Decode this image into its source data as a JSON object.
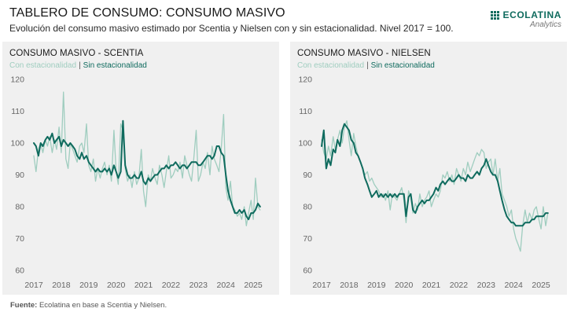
{
  "header": {
    "title": "TABLERO DE CONSUMO: CONSUMO MASIVO",
    "subtitle": "Evolución del consumo masivo estimado por Scentia y Nielsen con y sin estacionalidad. Nivel 2017 = 100."
  },
  "brand": {
    "name": "ECOLATINA",
    "sub": "Analytics",
    "color": "#0f6b5e"
  },
  "legend": {
    "sa_label": "Con estacionalidad",
    "separator": "|",
    "ss_label": "Sin estacionalidad"
  },
  "footer": {
    "source_label": "Fuente:",
    "source_text": " Ecolatina en base a Scentia y Nielsen."
  },
  "colors": {
    "panel_bg": "#f0f0f0",
    "light_series": "#9fcdbf",
    "dark_series": "#0f6b5e",
    "tick": "#666666"
  },
  "chart_data": [
    {
      "type": "line",
      "title": "CONSUMO MASIVO - SCENTIA",
      "ylim": [
        60,
        120
      ],
      "yticks": [
        60,
        70,
        80,
        90,
        100,
        110,
        120
      ],
      "xticks": [
        2017,
        2018,
        2019,
        2020,
        2021,
        2022,
        2023,
        2024,
        2025
      ],
      "xlim": [
        2017,
        2025.6
      ],
      "grid": false,
      "legend": "top-left",
      "series": [
        {
          "name": "Con estacionalidad",
          "color": "#9fcdbf",
          "x": [
            2017.0,
            2017.08,
            2017.17,
            2017.25,
            2017.33,
            2017.42,
            2017.5,
            2017.58,
            2017.67,
            2017.75,
            2017.83,
            2017.92,
            2018.0,
            2018.08,
            2018.17,
            2018.25,
            2018.33,
            2018.42,
            2018.5,
            2018.58,
            2018.67,
            2018.75,
            2018.83,
            2018.92,
            2019.0,
            2019.08,
            2019.17,
            2019.25,
            2019.33,
            2019.42,
            2019.5,
            2019.58,
            2019.67,
            2019.75,
            2019.83,
            2019.92,
            2020.0,
            2020.08,
            2020.17,
            2020.25,
            2020.33,
            2020.42,
            2020.5,
            2020.58,
            2020.67,
            2020.75,
            2020.83,
            2020.92,
            2021.0,
            2021.08,
            2021.17,
            2021.25,
            2021.33,
            2021.42,
            2021.5,
            2021.58,
            2021.67,
            2021.75,
            2021.83,
            2021.92,
            2022.0,
            2022.08,
            2022.17,
            2022.25,
            2022.33,
            2022.42,
            2022.5,
            2022.58,
            2022.67,
            2022.75,
            2022.83,
            2022.92,
            2023.0,
            2023.08,
            2023.17,
            2023.25,
            2023.33,
            2023.42,
            2023.5,
            2023.58,
            2023.67,
            2023.75,
            2023.83,
            2023.92,
            2024.0,
            2024.08,
            2024.17,
            2024.25,
            2024.33,
            2024.42,
            2024.5,
            2024.58,
            2024.67,
            2024.75,
            2024.83,
            2024.92,
            2025.0,
            2025.08,
            2025.17,
            2025.25
          ],
          "values": [
            96,
            91,
            98,
            100,
            97,
            101,
            99,
            102,
            97,
            101,
            98,
            105,
            97,
            116,
            95,
            92,
            100,
            98,
            96,
            94,
            99,
            100,
            97,
            106,
            93,
            91,
            95,
            88,
            92,
            89,
            92,
            94,
            90,
            93,
            88,
            104,
            91,
            87,
            106,
            104,
            92,
            88,
            90,
            86,
            91,
            87,
            89,
            98,
            85,
            80,
            90,
            88,
            92,
            89,
            87,
            93,
            90,
            86,
            91,
            96,
            89,
            90,
            92,
            91,
            94,
            89,
            96,
            93,
            90,
            88,
            95,
            104,
            88,
            90,
            94,
            92,
            97,
            90,
            99,
            95,
            93,
            91,
            98,
            109,
            86,
            82,
            88,
            80,
            79,
            77,
            78,
            76,
            80,
            74,
            78,
            82,
            76,
            89,
            80,
            79
          ]
        },
        {
          "name": "Sin estacionalidad",
          "color": "#0f6b5e",
          "x": [
            2017.0,
            2017.08,
            2017.17,
            2017.25,
            2017.33,
            2017.42,
            2017.5,
            2017.58,
            2017.67,
            2017.75,
            2017.83,
            2017.92,
            2018.0,
            2018.08,
            2018.17,
            2018.25,
            2018.33,
            2018.42,
            2018.5,
            2018.58,
            2018.67,
            2018.75,
            2018.83,
            2018.92,
            2019.0,
            2019.08,
            2019.17,
            2019.25,
            2019.33,
            2019.42,
            2019.5,
            2019.58,
            2019.67,
            2019.75,
            2019.83,
            2019.92,
            2020.0,
            2020.08,
            2020.17,
            2020.25,
            2020.33,
            2020.42,
            2020.5,
            2020.58,
            2020.67,
            2020.75,
            2020.83,
            2020.92,
            2021.0,
            2021.08,
            2021.17,
            2021.25,
            2021.33,
            2021.42,
            2021.5,
            2021.58,
            2021.67,
            2021.75,
            2021.83,
            2021.92,
            2022.0,
            2022.08,
            2022.17,
            2022.25,
            2022.33,
            2022.42,
            2022.5,
            2022.58,
            2022.67,
            2022.75,
            2022.83,
            2022.92,
            2023.0,
            2023.08,
            2023.17,
            2023.25,
            2023.33,
            2023.42,
            2023.5,
            2023.58,
            2023.67,
            2023.75,
            2023.83,
            2023.92,
            2024.0,
            2024.08,
            2024.17,
            2024.25,
            2024.33,
            2024.42,
            2024.5,
            2024.58,
            2024.67,
            2024.75,
            2024.83,
            2024.92,
            2025.0,
            2025.08,
            2025.17,
            2025.25
          ],
          "values": [
            100,
            99,
            96,
            100,
            99,
            101,
            102,
            101,
            103,
            100,
            101,
            102,
            99,
            101,
            100,
            99,
            100,
            99,
            98,
            96,
            95,
            97,
            95,
            96,
            94,
            93,
            92,
            91,
            92,
            91,
            91,
            92,
            91,
            92,
            90,
            93,
            91,
            89,
            91,
            107,
            93,
            90,
            89,
            89,
            90,
            89,
            89,
            91,
            88,
            87,
            89,
            88,
            89,
            90,
            90,
            91,
            92,
            92,
            93,
            92,
            93,
            93,
            94,
            93,
            92,
            93,
            93,
            92,
            93,
            94,
            94,
            94,
            93,
            93,
            94,
            95,
            96,
            96,
            95,
            96,
            99,
            99,
            97,
            96,
            90,
            85,
            82,
            80,
            78,
            78,
            79,
            78,
            79,
            77,
            76,
            78,
            78,
            79,
            81,
            80
          ]
        }
      ]
    },
    {
      "type": "line",
      "title": "CONSUMO MASIVO - NIELSEN",
      "ylim": [
        60,
        120
      ],
      "yticks": [
        60,
        70,
        80,
        90,
        100,
        110,
        120
      ],
      "xticks": [
        2017,
        2018,
        2019,
        2020,
        2021,
        2022,
        2023,
        2024,
        2025
      ],
      "xlim": [
        2017,
        2025.6
      ],
      "grid": false,
      "legend": "top-left",
      "series": [
        {
          "name": "Con estacionalidad",
          "color": "#9fcdbf",
          "x": [
            2017.0,
            2017.08,
            2017.17,
            2017.25,
            2017.33,
            2017.42,
            2017.5,
            2017.58,
            2017.67,
            2017.75,
            2017.83,
            2017.92,
            2018.0,
            2018.08,
            2018.17,
            2018.25,
            2018.33,
            2018.42,
            2018.5,
            2018.58,
            2018.67,
            2018.75,
            2018.83,
            2018.92,
            2019.0,
            2019.08,
            2019.17,
            2019.25,
            2019.33,
            2019.42,
            2019.5,
            2019.58,
            2019.67,
            2019.75,
            2019.83,
            2019.92,
            2020.0,
            2020.08,
            2020.17,
            2020.25,
            2020.33,
            2020.42,
            2020.5,
            2020.58,
            2020.67,
            2020.75,
            2020.83,
            2020.92,
            2021.0,
            2021.08,
            2021.17,
            2021.25,
            2021.33,
            2021.42,
            2021.5,
            2021.58,
            2021.67,
            2021.75,
            2021.83,
            2021.92,
            2022.0,
            2022.08,
            2022.17,
            2022.25,
            2022.33,
            2022.42,
            2022.5,
            2022.58,
            2022.67,
            2022.75,
            2022.83,
            2022.92,
            2023.0,
            2023.08,
            2023.17,
            2023.25,
            2023.33,
            2023.42,
            2023.5,
            2023.58,
            2023.67,
            2023.75,
            2023.83,
            2023.92,
            2024.0,
            2024.08,
            2024.17,
            2024.25,
            2024.33,
            2024.42,
            2024.5,
            2024.58,
            2024.67,
            2024.75,
            2024.83,
            2024.92,
            2025.0,
            2025.08,
            2025.17,
            2025.25
          ],
          "values": [
            101,
            97,
            95,
            99,
            96,
            102,
            98,
            101,
            104,
            100,
            105,
            107,
            101,
            96,
            103,
            99,
            96,
            94,
            92,
            90,
            91,
            88,
            89,
            87,
            86,
            85,
            83,
            84,
            82,
            85,
            79,
            84,
            83,
            82,
            84,
            86,
            82,
            75,
            85,
            83,
            78,
            81,
            79,
            84,
            80,
            82,
            83,
            85,
            80,
            82,
            84,
            83,
            85,
            90,
            89,
            91,
            88,
            90,
            87,
            92,
            90,
            88,
            92,
            90,
            94,
            91,
            93,
            95,
            97,
            96,
            98,
            97,
            92,
            94,
            95,
            90,
            95,
            88,
            92,
            84,
            82,
            80,
            77,
            79,
            73,
            70,
            68,
            66,
            74,
            79,
            75,
            78,
            76,
            79,
            80,
            76,
            73,
            80,
            74,
            78
          ]
        },
        {
          "name": "Sin estacionalidad",
          "color": "#0f6b5e",
          "x": [
            2017.0,
            2017.08,
            2017.17,
            2017.25,
            2017.33,
            2017.42,
            2017.5,
            2017.58,
            2017.67,
            2017.75,
            2017.83,
            2017.92,
            2018.0,
            2018.08,
            2018.17,
            2018.25,
            2018.33,
            2018.42,
            2018.5,
            2018.58,
            2018.67,
            2018.75,
            2018.83,
            2018.92,
            2019.0,
            2019.08,
            2019.17,
            2019.25,
            2019.33,
            2019.42,
            2019.5,
            2019.58,
            2019.67,
            2019.75,
            2019.83,
            2019.92,
            2020.0,
            2020.08,
            2020.17,
            2020.25,
            2020.33,
            2020.42,
            2020.5,
            2020.58,
            2020.67,
            2020.75,
            2020.83,
            2020.92,
            2021.0,
            2021.08,
            2021.17,
            2021.25,
            2021.33,
            2021.42,
            2021.5,
            2021.58,
            2021.67,
            2021.75,
            2021.83,
            2021.92,
            2022.0,
            2022.08,
            2022.17,
            2022.25,
            2022.33,
            2022.42,
            2022.5,
            2022.58,
            2022.67,
            2022.75,
            2022.83,
            2022.92,
            2023.0,
            2023.08,
            2023.17,
            2023.25,
            2023.33,
            2023.42,
            2023.5,
            2023.58,
            2023.67,
            2023.75,
            2023.83,
            2023.92,
            2024.0,
            2024.08,
            2024.17,
            2024.25,
            2024.33,
            2024.42,
            2024.5,
            2024.58,
            2024.67,
            2024.75,
            2024.83,
            2024.92,
            2025.0,
            2025.08,
            2025.17,
            2025.25
          ],
          "values": [
            99,
            104,
            92,
            95,
            93,
            98,
            97,
            101,
            99,
            104,
            106,
            105,
            104,
            101,
            100,
            97,
            96,
            94,
            92,
            89,
            87,
            85,
            83,
            84,
            85,
            83,
            84,
            83,
            84,
            83,
            84,
            83,
            84,
            83,
            84,
            84,
            84,
            77,
            83,
            84,
            79,
            78,
            80,
            81,
            82,
            81,
            82,
            82,
            83,
            84,
            86,
            85,
            87,
            88,
            87,
            88,
            89,
            88,
            88,
            89,
            90,
            89,
            89,
            88,
            90,
            89,
            89,
            90,
            91,
            90,
            92,
            93,
            95,
            93,
            91,
            90,
            90,
            88,
            85,
            82,
            79,
            77,
            76,
            75,
            75,
            74,
            74,
            74,
            74,
            75,
            75,
            75,
            76,
            76,
            77,
            77,
            77,
            77,
            78,
            78
          ]
        }
      ]
    }
  ]
}
